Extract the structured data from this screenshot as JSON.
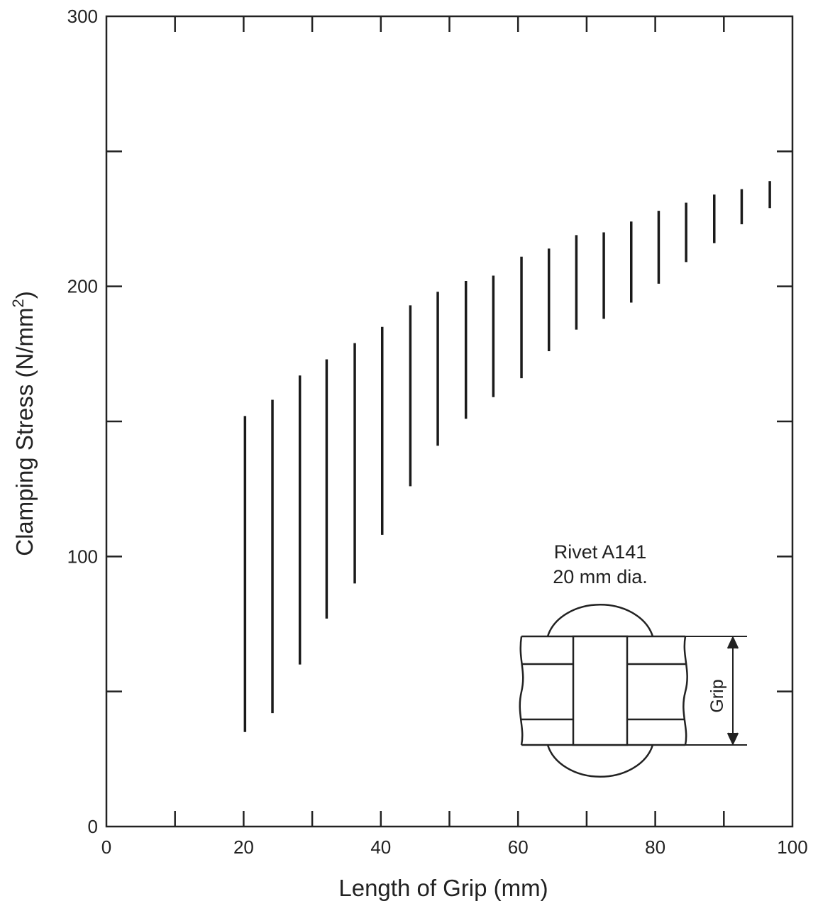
{
  "chart_data": {
    "type": "range",
    "title": "",
    "xlabel": "Length of Grip (mm)",
    "ylabel_main": "Clamping Stress (N/mm",
    "ylabel_sup": "2",
    "ylabel_tail": ")",
    "xlim": [
      0,
      100
    ],
    "ylim": [
      0,
      300
    ],
    "x_ticks": [
      0,
      20,
      40,
      60,
      80,
      100
    ],
    "x_tick_labels": [
      "0",
      "20",
      "40",
      "60",
      "80",
      "100"
    ],
    "x_minor_ticks": [
      10,
      30,
      50,
      70,
      90
    ],
    "y_ticks": [
      0,
      100,
      200,
      300
    ],
    "y_tick_labels": [
      "0",
      "100",
      "200",
      "300"
    ],
    "y_minor_ticks": [
      50,
      150,
      250
    ],
    "grid": false,
    "series": [
      {
        "x": [
          20.2,
          24.2,
          28.2,
          32.1,
          36.2,
          40.2,
          44.3,
          48.3,
          52.4,
          56.4,
          60.5,
          64.5,
          68.5,
          72.5,
          76.5,
          80.5,
          84.5,
          88.6,
          92.6,
          96.7
        ],
        "low": [
          35,
          42,
          60,
          77,
          90,
          108,
          126,
          141,
          151,
          159,
          166,
          176,
          184,
          188,
          194,
          201,
          209,
          216,
          223,
          229
        ],
        "high": [
          152,
          158,
          167,
          173,
          179,
          185,
          193,
          198,
          202,
          204,
          211,
          214,
          219,
          220,
          224,
          228,
          231,
          234,
          236,
          239
        ]
      }
    ],
    "annotation_lines": [
      "Rivet A141",
      "20 mm dia."
    ],
    "inset_label": "Grip"
  }
}
